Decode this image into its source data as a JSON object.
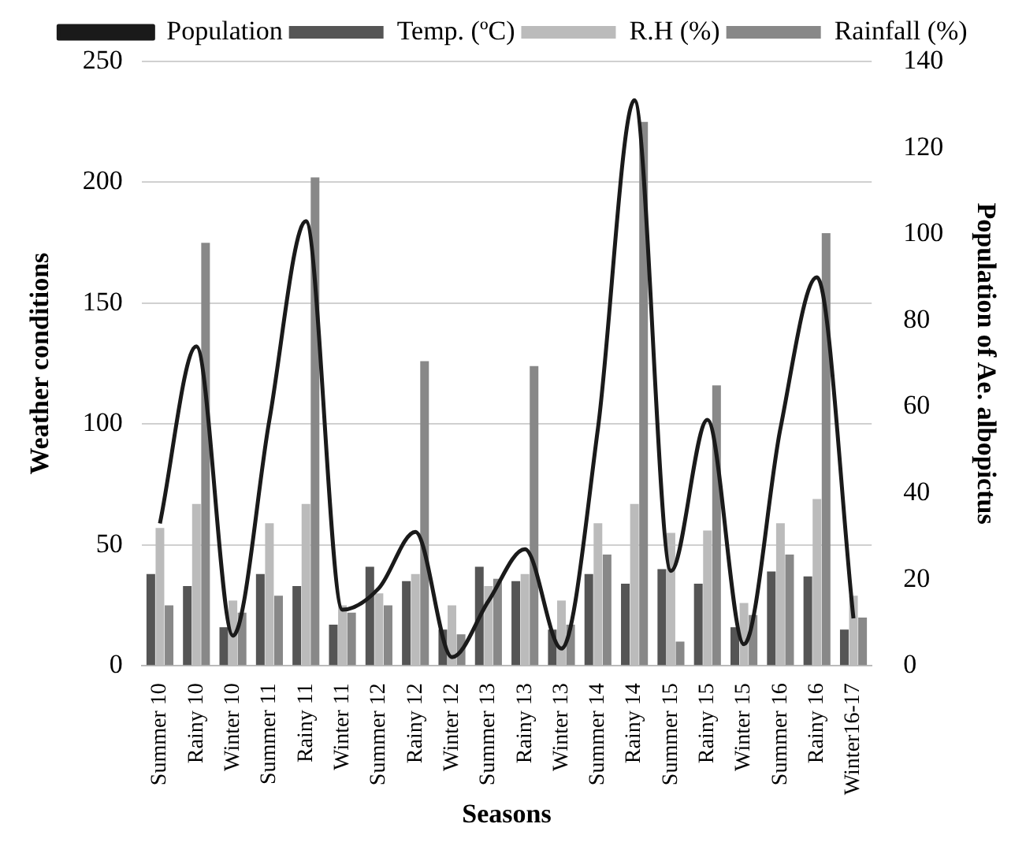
{
  "chart_data": {
    "type": "bar",
    "xlabel": "Seasons",
    "ylabel": "Weather conditions",
    "y2label": "Population of Ae. albopictus",
    "categories": [
      "Summer 10",
      "Rainy 10",
      "Winter 10",
      "Summer 11",
      "Rainy 11",
      "Winter 11",
      "Summer 12",
      "Rainy 12",
      "Winter 12",
      "Summer 13",
      "Rainy 13",
      "Winter 13",
      "Summer 14",
      "Rainy 14",
      "Summer 15",
      "Rainy 15",
      "Winter 15",
      "Summer 16",
      "Rainy 16",
      "Winter16-17"
    ],
    "series": [
      {
        "name": "Temp. (ºC)",
        "color": "#555555",
        "values": [
          38,
          33,
          16,
          38,
          33,
          17,
          41,
          35,
          15,
          41,
          35,
          15,
          38,
          34,
          40,
          34,
          16,
          39,
          37,
          15
        ]
      },
      {
        "name": "R.H (%)",
        "color": "#bbbbbb",
        "values": [
          57,
          67,
          27,
          59,
          67,
          25,
          30,
          38,
          25,
          33,
          38,
          27,
          59,
          67,
          55,
          56,
          26,
          59,
          69,
          29
        ]
      },
      {
        "name": "Rainfall (%)",
        "color": "#888888",
        "values": [
          25,
          175,
          22,
          29,
          202,
          22,
          25,
          126,
          13,
          36,
          124,
          17,
          46,
          225,
          10,
          116,
          21,
          46,
          179,
          20
        ]
      },
      {
        "name": "Population",
        "type": "line",
        "axis": "y2",
        "color": "#1a1a1a",
        "values": [
          33,
          74,
          7,
          57,
          103,
          13,
          18,
          31,
          2,
          15,
          27,
          4,
          55,
          131,
          22,
          57,
          5,
          55,
          90,
          11
        ]
      }
    ],
    "ylim": [
      0,
      250
    ],
    "yticks": [
      0,
      50,
      100,
      150,
      200,
      250
    ],
    "y2lim": [
      0,
      140
    ],
    "y2ticks": [
      0,
      20,
      40,
      60,
      80,
      100,
      120,
      140
    ],
    "grid": "y",
    "legend": "top",
    "marker": "none"
  }
}
